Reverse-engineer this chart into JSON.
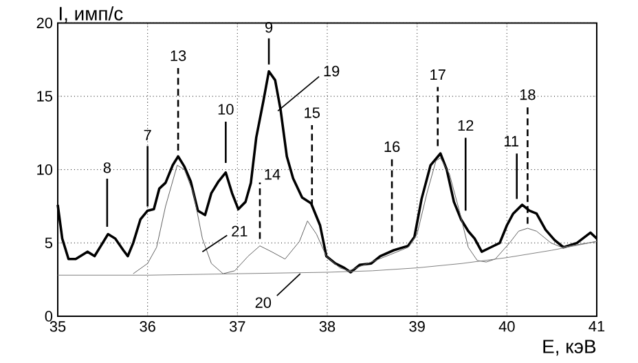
{
  "chart_data": {
    "type": "line",
    "xlabel": "E, кэВ",
    "ylabel": "I, имп/с",
    "xlim": [
      35,
      41
    ],
    "ylim": [
      0,
      20
    ],
    "xticks": [
      35,
      36,
      37,
      38,
      39,
      40,
      41
    ],
    "yticks": [
      0,
      5,
      10,
      15,
      20
    ],
    "grid": true,
    "marker": "none",
    "line_style": "solid",
    "series": [
      {
        "color": "#000000",
        "x": [
          35.0,
          35.05,
          35.12,
          35.2,
          35.33,
          35.41,
          35.48,
          35.56,
          35.64,
          35.73,
          35.78,
          35.84,
          35.92,
          36.0,
          36.07,
          36.13,
          36.2,
          36.28,
          36.34,
          36.41,
          36.48,
          36.56,
          36.64,
          36.71,
          36.79,
          36.87,
          36.94,
          37.01,
          37.09,
          37.15,
          37.21,
          37.29,
          37.35,
          37.42,
          37.48,
          37.55,
          37.62,
          37.72,
          37.82,
          37.92,
          37.99,
          38.09,
          38.19,
          38.26,
          38.36,
          38.49,
          38.59,
          38.74,
          38.9,
          38.97,
          39.05,
          39.15,
          39.26,
          39.33,
          39.41,
          39.49,
          39.57,
          39.64,
          39.72,
          39.82,
          39.92,
          40.0,
          40.07,
          40.17,
          40.25,
          40.33,
          40.43,
          40.53,
          40.63,
          40.78,
          40.93,
          41.0
        ],
        "values": [
          7.6,
          5.3,
          3.9,
          3.9,
          4.4,
          4.1,
          4.8,
          5.6,
          5.3,
          4.5,
          4.1,
          5.0,
          6.6,
          7.2,
          7.3,
          8.7,
          9.1,
          10.3,
          10.9,
          10.2,
          9.2,
          7.2,
          6.9,
          8.4,
          9.2,
          9.8,
          8.4,
          7.3,
          7.8,
          9.1,
          12.2,
          14.7,
          16.7,
          16.1,
          14.1,
          10.9,
          9.4,
          8.1,
          7.7,
          6.2,
          4.1,
          3.6,
          3.3,
          3.0,
          3.5,
          3.6,
          4.1,
          4.5,
          4.8,
          5.4,
          8.0,
          10.3,
          11.1,
          10.0,
          7.8,
          6.6,
          5.8,
          5.3,
          4.4,
          4.7,
          5.0,
          6.2,
          7.0,
          7.6,
          7.2,
          7.0,
          5.9,
          5.2,
          4.7,
          5.0,
          5.7,
          5.3
        ]
      },
      {
        "color": "#606060",
        "x": [
          35.84,
          36.0,
          36.1,
          36.2,
          36.33,
          36.41,
          36.51,
          36.61,
          36.71,
          36.84,
          36.97,
          37.12,
          37.25,
          37.38,
          37.53,
          37.69,
          37.78,
          37.88,
          37.99,
          38.14,
          38.24,
          38.45,
          38.7,
          38.9,
          39.0,
          39.11,
          39.21,
          39.26,
          39.36,
          39.47,
          39.57,
          39.67,
          39.77,
          39.87,
          40.03,
          40.13,
          40.23,
          40.33,
          40.49,
          40.61,
          41.0
        ],
        "values": [
          2.9,
          3.6,
          4.7,
          7.5,
          10.3,
          10.0,
          8.4,
          5.3,
          3.6,
          2.9,
          3.1,
          4.1,
          4.8,
          4.4,
          3.9,
          5.1,
          6.5,
          5.6,
          4.1,
          3.3,
          3.1,
          3.6,
          4.2,
          4.7,
          5.6,
          8.4,
          10.6,
          10.8,
          9.7,
          7.2,
          4.7,
          3.8,
          3.7,
          3.9,
          5.0,
          5.8,
          6.0,
          5.8,
          5.0,
          4.7,
          5.1
        ]
      },
      {
        "color": "#808080",
        "x": [
          35,
          36,
          37,
          38,
          38.5,
          39,
          39.5,
          40,
          40.5,
          41
        ],
        "values": [
          2.8,
          2.8,
          2.9,
          3.0,
          3.1,
          3.3,
          3.6,
          4.0,
          4.5,
          5.1
        ]
      }
    ],
    "annotations": [
      {
        "text": "8",
        "x": 35.55,
        "y": 6.1
      },
      {
        "text": "7",
        "x": 36.0,
        "y": 7.2
      },
      {
        "text": "13",
        "x": 36.34,
        "y": 11.3
      },
      {
        "text": "10",
        "x": 36.87,
        "y": 9.8
      },
      {
        "text": "9",
        "x": 37.35,
        "y": 16.7
      },
      {
        "text": "14",
        "x": 37.25,
        "y": 4.8
      },
      {
        "text": "15",
        "x": 37.83,
        "y": 7.5
      },
      {
        "text": "16",
        "x": 38.72,
        "y": 5.0
      },
      {
        "text": "17",
        "x": 39.23,
        "y": 11.6
      },
      {
        "text": "12",
        "x": 39.54,
        "y": 7.2
      },
      {
        "text": "11",
        "x": 40.11,
        "y": 8.0
      },
      {
        "text": "18",
        "x": 40.23,
        "y": 6.3
      },
      {
        "text": "19",
        "x": 37.45,
        "y": 14.0
      },
      {
        "text": "20",
        "x": 37.7,
        "y": 2.9
      },
      {
        "text": "21",
        "x": 36.61,
        "y": 4.4
      }
    ]
  }
}
